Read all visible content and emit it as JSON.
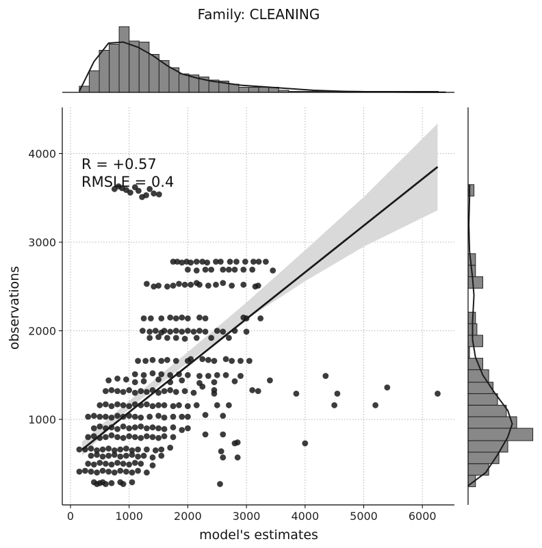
{
  "chart_data": {
    "type": "scatter",
    "title": "Family: CLEANING",
    "xlabel": "model's estimates",
    "ylabel": "observations",
    "xlim": [
      -120,
      6550
    ],
    "ylim": [
      50,
      4550
    ],
    "xticks": [
      0,
      1000,
      2000,
      3000,
      4000,
      5000,
      6000
    ],
    "yticks": [
      1000,
      2000,
      3000,
      4000
    ],
    "xtick_labels": [
      "0",
      "1000",
      "2000",
      "3000",
      "4000",
      "5000",
      "6000"
    ],
    "ytick_labels": [
      "1000",
      "2000",
      "3000",
      "4000"
    ],
    "grid": true,
    "annotation": [
      "R = +0.57",
      "RMSLE =  0.4"
    ],
    "point_color": "#1a1a1a",
    "histogram_color": "#888888",
    "regression_line": {
      "x": [
        200,
        6260
      ],
      "y": [
        660,
        3850
      ]
    },
    "confidence_band": {
      "x": [
        200,
        1000,
        2000,
        3000,
        4000,
        5000,
        6260
      ],
      "lower": [
        590,
        1120,
        1640,
        2130,
        2560,
        2950,
        3360
      ],
      "upper": [
        750,
        1210,
        1760,
        2320,
        2910,
        3510,
        4340
      ]
    },
    "top_histogram": {
      "bin_start": 150,
      "bin_width": 170,
      "counts": [
        6,
        21,
        41,
        47,
        64,
        50,
        49,
        37,
        31,
        24,
        18,
        17,
        15,
        12,
        11,
        8,
        5,
        5,
        5,
        5,
        2,
        1,
        1,
        1,
        1,
        1,
        1,
        1,
        1,
        1,
        1,
        1,
        1,
        1,
        1,
        1
      ],
      "kde_y": [
        1,
        30,
        48,
        49,
        44,
        36,
        26,
        18,
        14,
        11,
        9,
        7,
        6,
        5,
        4,
        3,
        2,
        1.5,
        1,
        0.8,
        0.5,
        0.4,
        0.3,
        0.2,
        0.1,
        0.1
      ],
      "kde_x_start": 150,
      "kde_x_step": 250
    },
    "right_histogram": {
      "bins": [
        {
          "y0": 240,
          "y1": 370,
          "count": 5
        },
        {
          "y0": 370,
          "y1": 500,
          "count": 14
        },
        {
          "y0": 500,
          "y1": 630,
          "count": 21
        },
        {
          "y0": 630,
          "y1": 760,
          "count": 27
        },
        {
          "y0": 760,
          "y1": 900,
          "count": 44
        },
        {
          "y0": 900,
          "y1": 1030,
          "count": 33
        },
        {
          "y0": 1030,
          "y1": 1160,
          "count": 26
        },
        {
          "y0": 1160,
          "y1": 1290,
          "count": 20
        },
        {
          "y0": 1290,
          "y1": 1420,
          "count": 17
        },
        {
          "y0": 1420,
          "y1": 1560,
          "count": 14
        },
        {
          "y0": 1560,
          "y1": 1690,
          "count": 10
        },
        {
          "y0": 1690,
          "y1": 1820,
          "count": 1
        },
        {
          "y0": 1820,
          "y1": 1950,
          "count": 10
        },
        {
          "y0": 1950,
          "y1": 2080,
          "count": 6
        },
        {
          "y0": 2080,
          "y1": 2210,
          "count": 5
        },
        {
          "y0": 2480,
          "y1": 2610,
          "count": 10
        },
        {
          "y0": 2610,
          "y1": 2740,
          "count": 5
        },
        {
          "y0": 2740,
          "y1": 2870,
          "count": 5
        },
        {
          "y0": 3520,
          "y1": 3650,
          "count": 4
        }
      ],
      "kde": [
        [
          250,
          0
        ],
        [
          400,
          12
        ],
        [
          600,
          20
        ],
        [
          800,
          27
        ],
        [
          950,
          30
        ],
        [
          1100,
          27
        ],
        [
          1300,
          18
        ],
        [
          1500,
          10
        ],
        [
          1700,
          5
        ],
        [
          1900,
          3
        ],
        [
          2100,
          3
        ],
        [
          2400,
          4
        ],
        [
          2600,
          3
        ],
        [
          2900,
          1
        ],
        [
          3200,
          0.5
        ],
        [
          3500,
          1
        ],
        [
          3650,
          1
        ]
      ]
    },
    "points": [
      [
        750,
        3600
      ],
      [
        820,
        3630
      ],
      [
        880,
        3610
      ],
      [
        950,
        3590
      ],
      [
        1020,
        3560
      ],
      [
        1100,
        3620
      ],
      [
        1160,
        3580
      ],
      [
        1220,
        3510
      ],
      [
        1290,
        3530
      ],
      [
        1350,
        3600
      ],
      [
        1420,
        3550
      ],
      [
        1510,
        3540
      ],
      [
        1750,
        2780
      ],
      [
        1820,
        2780
      ],
      [
        1900,
        2770
      ],
      [
        1980,
        2780
      ],
      [
        2050,
        2770
      ],
      [
        2150,
        2780
      ],
      [
        2250,
        2780
      ],
      [
        2330,
        2770
      ],
      [
        2480,
        2780
      ],
      [
        2560,
        2780
      ],
      [
        2720,
        2780
      ],
      [
        2830,
        2780
      ],
      [
        2980,
        2780
      ],
      [
        3120,
        2780
      ],
      [
        3210,
        2780
      ],
      [
        3330,
        2780
      ],
      [
        2000,
        2690
      ],
      [
        2150,
        2680
      ],
      [
        2300,
        2690
      ],
      [
        2400,
        2690
      ],
      [
        2600,
        2690
      ],
      [
        2700,
        2690
      ],
      [
        2800,
        2690
      ],
      [
        2950,
        2690
      ],
      [
        3100,
        2690
      ],
      [
        3450,
        2680
      ],
      [
        1300,
        2530
      ],
      [
        1420,
        2500
      ],
      [
        1500,
        2510
      ],
      [
        1650,
        2500
      ],
      [
        1750,
        2510
      ],
      [
        1850,
        2530
      ],
      [
        1950,
        2520
      ],
      [
        2050,
        2520
      ],
      [
        2150,
        2540
      ],
      [
        2200,
        2520
      ],
      [
        2350,
        2510
      ],
      [
        2480,
        2520
      ],
      [
        2600,
        2540
      ],
      [
        2750,
        2510
      ],
      [
        2950,
        2520
      ],
      [
        3150,
        2500
      ],
      [
        3200,
        2510
      ],
      [
        1250,
        2140
      ],
      [
        1370,
        2140
      ],
      [
        1550,
        2140
      ],
      [
        1700,
        2150
      ],
      [
        1800,
        2140
      ],
      [
        1900,
        2150
      ],
      [
        2000,
        2140
      ],
      [
        2200,
        2150
      ],
      [
        2300,
        2140
      ],
      [
        2950,
        2150
      ],
      [
        3000,
        2140
      ],
      [
        3240,
        2140
      ],
      [
        1230,
        2000
      ],
      [
        1350,
        1990
      ],
      [
        1450,
        2000
      ],
      [
        1550,
        1980
      ],
      [
        1600,
        2000
      ],
      [
        1700,
        1990
      ],
      [
        1800,
        2000
      ],
      [
        1900,
        1990
      ],
      [
        2000,
        2000
      ],
      [
        2100,
        1990
      ],
      [
        2200,
        2000
      ],
      [
        2300,
        1990
      ],
      [
        2500,
        2000
      ],
      [
        2600,
        1990
      ],
      [
        2800,
        2000
      ],
      [
        3000,
        1990
      ],
      [
        1350,
        1920
      ],
      [
        1500,
        1930
      ],
      [
        1650,
        1920
      ],
      [
        1800,
        1920
      ],
      [
        1950,
        1910
      ],
      [
        2150,
        1920
      ],
      [
        2400,
        1920
      ],
      [
        2700,
        1920
      ],
      [
        1150,
        1660
      ],
      [
        1280,
        1660
      ],
      [
        1400,
        1670
      ],
      [
        1550,
        1660
      ],
      [
        1650,
        1670
      ],
      [
        1800,
        1660
      ],
      [
        2000,
        1660
      ],
      [
        2050,
        1680
      ],
      [
        2250,
        1680
      ],
      [
        2350,
        1670
      ],
      [
        2450,
        1660
      ],
      [
        2650,
        1680
      ],
      [
        2750,
        1660
      ],
      [
        2900,
        1660
      ],
      [
        3050,
        1660
      ],
      [
        1100,
        1510
      ],
      [
        1250,
        1500
      ],
      [
        1400,
        1520
      ],
      [
        1550,
        1510
      ],
      [
        1700,
        1500
      ],
      [
        1850,
        1510
      ],
      [
        2000,
        1500
      ],
      [
        2200,
        1490
      ],
      [
        2350,
        1490
      ],
      [
        2500,
        1500
      ],
      [
        2650,
        1500
      ],
      [
        2900,
        1490
      ],
      [
        3400,
        1440
      ],
      [
        4350,
        1490
      ],
      [
        650,
        1440
      ],
      [
        800,
        1460
      ],
      [
        950,
        1450
      ],
      [
        1100,
        1420
      ],
      [
        1250,
        1430
      ],
      [
        1500,
        1450
      ],
      [
        1700,
        1420
      ],
      [
        1900,
        1440
      ],
      [
        2200,
        1410
      ],
      [
        2450,
        1420
      ],
      [
        2800,
        1430
      ],
      [
        3100,
        1330
      ],
      [
        2450,
        1330
      ],
      [
        2250,
        1370
      ],
      [
        2450,
        1290
      ],
      [
        3200,
        1320
      ],
      [
        3850,
        1290
      ],
      [
        4550,
        1290
      ],
      [
        5400,
        1360
      ],
      [
        6260,
        1290
      ],
      [
        600,
        1320
      ],
      [
        700,
        1330
      ],
      [
        800,
        1320
      ],
      [
        900,
        1310
      ],
      [
        1000,
        1330
      ],
      [
        1100,
        1300
      ],
      [
        1200,
        1320
      ],
      [
        1300,
        1310
      ],
      [
        1400,
        1330
      ],
      [
        1500,
        1300
      ],
      [
        1600,
        1320
      ],
      [
        1700,
        1330
      ],
      [
        1800,
        1310
      ],
      [
        1950,
        1320
      ],
      [
        2100,
        1300
      ],
      [
        500,
        1160
      ],
      [
        600,
        1170
      ],
      [
        700,
        1150
      ],
      [
        800,
        1170
      ],
      [
        900,
        1160
      ],
      [
        1000,
        1150
      ],
      [
        1100,
        1170
      ],
      [
        1200,
        1160
      ],
      [
        1300,
        1170
      ],
      [
        1400,
        1150
      ],
      [
        1500,
        1160
      ],
      [
        1600,
        1160
      ],
      [
        1750,
        1150
      ],
      [
        1850,
        1160
      ],
      [
        2000,
        1150
      ],
      [
        2150,
        1160
      ],
      [
        2500,
        1160
      ],
      [
        2700,
        1160
      ],
      [
        4500,
        1160
      ],
      [
        5200,
        1160
      ],
      [
        300,
        1030
      ],
      [
        400,
        1040
      ],
      [
        500,
        1030
      ],
      [
        600,
        1030
      ],
      [
        700,
        1020
      ],
      [
        800,
        1040
      ],
      [
        900,
        1030
      ],
      [
        1000,
        1040
      ],
      [
        1100,
        1030
      ],
      [
        1200,
        1020
      ],
      [
        1350,
        1030
      ],
      [
        1500,
        1040
      ],
      [
        1600,
        1020
      ],
      [
        1750,
        1030
      ],
      [
        1900,
        1030
      ],
      [
        2000,
        1030
      ],
      [
        2300,
        1050
      ],
      [
        2600,
        1040
      ],
      [
        400,
        900
      ],
      [
        500,
        920
      ],
      [
        600,
        900
      ],
      [
        700,
        910
      ],
      [
        800,
        890
      ],
      [
        900,
        920
      ],
      [
        1000,
        900
      ],
      [
        1100,
        910
      ],
      [
        1200,
        920
      ],
      [
        1300,
        900
      ],
      [
        1400,
        910
      ],
      [
        1500,
        900
      ],
      [
        1600,
        890
      ],
      [
        1750,
        910
      ],
      [
        1900,
        880
      ],
      [
        2000,
        900
      ],
      [
        300,
        800
      ],
      [
        400,
        810
      ],
      [
        500,
        790
      ],
      [
        600,
        800
      ],
      [
        700,
        820
      ],
      [
        800,
        800
      ],
      [
        900,
        790
      ],
      [
        1000,
        810
      ],
      [
        1100,
        800
      ],
      [
        1200,
        790
      ],
      [
        1300,
        810
      ],
      [
        1400,
        800
      ],
      [
        1500,
        790
      ],
      [
        1600,
        810
      ],
      [
        1750,
        800
      ],
      [
        2300,
        830
      ],
      [
        2600,
        830
      ],
      [
        150,
        660
      ],
      [
        250,
        660
      ],
      [
        350,
        670
      ],
      [
        450,
        650
      ],
      [
        550,
        660
      ],
      [
        650,
        670
      ],
      [
        750,
        650
      ],
      [
        850,
        660
      ],
      [
        950,
        670
      ],
      [
        1050,
        650
      ],
      [
        1150,
        660
      ],
      [
        1300,
        660
      ],
      [
        1450,
        650
      ],
      [
        1550,
        660
      ],
      [
        1700,
        680
      ],
      [
        2800,
        730
      ],
      [
        2850,
        740
      ],
      [
        4000,
        730
      ],
      [
        2570,
        640
      ],
      [
        2850,
        570
      ],
      [
        2600,
        570
      ],
      [
        350,
        590
      ],
      [
        450,
        600
      ],
      [
        550,
        580
      ],
      [
        650,
        590
      ],
      [
        750,
        600
      ],
      [
        850,
        580
      ],
      [
        950,
        590
      ],
      [
        1050,
        600
      ],
      [
        1150,
        580
      ],
      [
        1250,
        590
      ],
      [
        1400,
        570
      ],
      [
        1550,
        590
      ],
      [
        300,
        500
      ],
      [
        400,
        490
      ],
      [
        500,
        510
      ],
      [
        600,
        500
      ],
      [
        700,
        490
      ],
      [
        800,
        510
      ],
      [
        900,
        500
      ],
      [
        1000,
        490
      ],
      [
        1100,
        510
      ],
      [
        1200,
        500
      ],
      [
        1400,
        480
      ],
      [
        150,
        410
      ],
      [
        250,
        420
      ],
      [
        350,
        410
      ],
      [
        450,
        400
      ],
      [
        550,
        420
      ],
      [
        650,
        410
      ],
      [
        750,
        400
      ],
      [
        850,
        420
      ],
      [
        950,
        410
      ],
      [
        1050,
        400
      ],
      [
        1150,
        420
      ],
      [
        1300,
        400
      ],
      [
        400,
        290
      ],
      [
        450,
        270
      ],
      [
        500,
        280
      ],
      [
        550,
        290
      ],
      [
        600,
        270
      ],
      [
        700,
        280
      ],
      [
        850,
        290
      ],
      [
        900,
        270
      ],
      [
        1050,
        290
      ],
      [
        2550,
        270
      ]
    ]
  }
}
